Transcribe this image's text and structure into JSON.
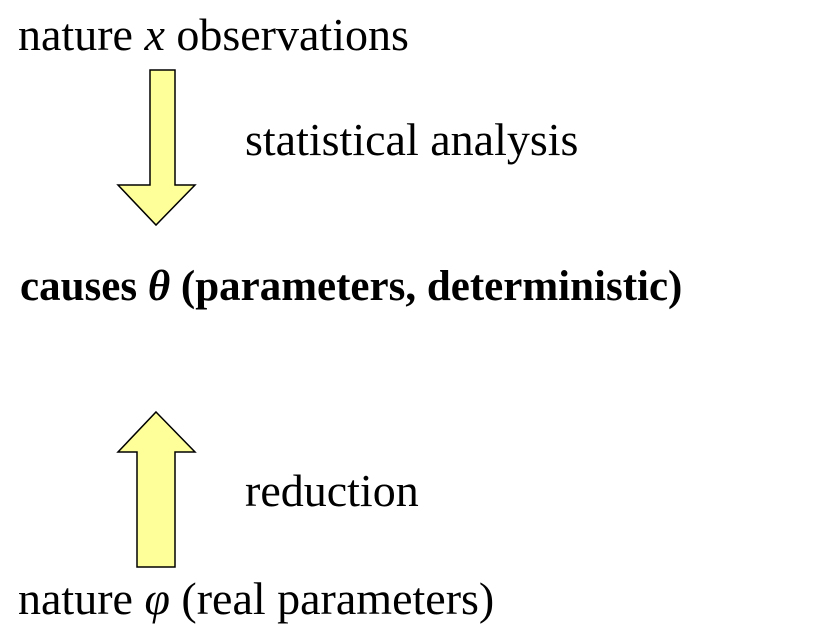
{
  "top": {
    "before": "nature",
    "variable": "x",
    "after": "observations"
  },
  "arrow_down_label": "statistical analysis",
  "middle": {
    "before": "causes",
    "variable": "θ",
    "after": "(parameters, deterministic)"
  },
  "arrow_up_label": "reduction",
  "bottom": {
    "before": "nature",
    "variable": "φ",
    "after": "(real parameters)"
  }
}
